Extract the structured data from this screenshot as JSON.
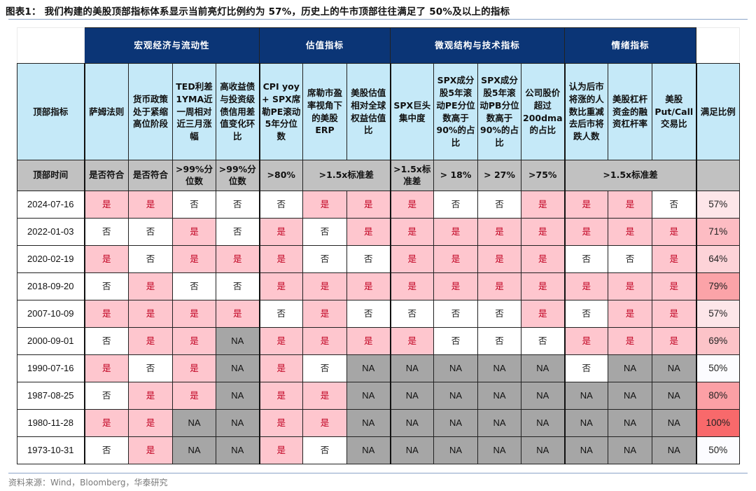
{
  "title": "图表1：  我们构建的美股顶部指标体系显示当前亮灯比例约为 57%，历史上的牛市顶部往往满足了 50%及以上的指标",
  "source": "资料来源：Wind，Bloomberg，华泰研究",
  "colors": {
    "group_header_bg": "#0b3576",
    "indicator_header_bg": "#c5e9f8",
    "criteria_bg": "#c1c1c1",
    "yes_bg": "#fec6ce",
    "yes_text": "#c00020",
    "na_bg": "#a6a6a6",
    "no_bg": "#ffffff"
  },
  "table": {
    "groups": [
      {
        "label": "宏观经济与流动性",
        "span": 4
      },
      {
        "label": "估值指标",
        "span": 3
      },
      {
        "label": "微观结构与技术指标",
        "span": 4
      },
      {
        "label": "情绪指标",
        "span": 3
      }
    ],
    "row_header_label": "顶部指标",
    "indicators": [
      "萨姆法则",
      "货币政策处于紧缩高位阶段",
      "TED利差1YMA近一周相对近三月涨幅",
      "高收益债与投资级债信用差值变化环比",
      "CPI yoy + SPX席勒PE滚动5年分位数",
      "席勒市盈率视角下的美股ERP",
      "美股估值相对全球权益估值比",
      "SPX巨头集中度",
      "SPX成分股5年滚动PE分位数高于90%的占比",
      "SPX成分股5年滚动PB分位数高于90%的占比",
      "公司股价超过200dma的占比",
      "认为后市将涨的人数比重减去后市将跌人数",
      "美股杠杆资金的融资杠杆率",
      "美股Put/Call交易比"
    ],
    "ratio_header": "满足比例",
    "criteria_label": "顶部时间",
    "criteria": [
      {
        "text": "是否符合",
        "span": 1
      },
      {
        "text": "是否符合",
        "span": 1
      },
      {
        "text": ">99%分位数",
        "span": 1
      },
      {
        "text": ">99%分位数",
        "span": 1
      },
      {
        "text": ">80%",
        "span": 1
      },
      {
        "text": ">1.5x标准差",
        "span": 2
      },
      {
        "text": ">1.5x标准差",
        "span": 1
      },
      {
        "text": "> 18%",
        "span": 1
      },
      {
        "text": "> 27%",
        "span": 1
      },
      {
        "text": ">75%",
        "span": 1
      },
      {
        "text": ">1.5x标准差",
        "span": 3
      }
    ],
    "rows": [
      {
        "date": "2024-07-16",
        "cells": [
          "是",
          "是",
          "否",
          "否",
          "否",
          "是",
          "是",
          "是",
          "否",
          "否",
          "是",
          "是",
          "是",
          "否"
        ],
        "ratio": "57%",
        "ratio_color": "#fde6e9"
      },
      {
        "date": "2022-01-03",
        "cells": [
          "否",
          "否",
          "是",
          "否",
          "是",
          "否",
          "是",
          "是",
          "是",
          "是",
          "是",
          "是",
          "是",
          "是"
        ],
        "ratio": "71%",
        "ratio_color": "#fdbcc3"
      },
      {
        "date": "2020-02-19",
        "cells": [
          "是",
          "否",
          "是",
          "是",
          "是",
          "否",
          "否",
          "是",
          "是",
          "是",
          "是",
          "否",
          "否",
          "是"
        ],
        "ratio": "64%",
        "ratio_color": "#fdd3d8"
      },
      {
        "date": "2018-09-20",
        "cells": [
          "否",
          "是",
          "否",
          "否",
          "是",
          "是",
          "是",
          "是",
          "是",
          "是",
          "是",
          "是",
          "是",
          "是"
        ],
        "ratio": "79%",
        "ratio_color": "#fba3a8"
      },
      {
        "date": "2007-10-09",
        "cells": [
          "是",
          "是",
          "是",
          "是",
          "否",
          "是",
          "否",
          "否",
          "否",
          "否",
          "是",
          "否",
          "是",
          "是"
        ],
        "ratio": "57%",
        "ratio_color": "#fde6e9"
      },
      {
        "date": "2000-09-01",
        "cells": [
          "否",
          "是",
          "是",
          "NA",
          "是",
          "是",
          "是",
          "是",
          "否",
          "否",
          "否",
          "是",
          "是",
          "是"
        ],
        "ratio": "69%",
        "ratio_color": "#fcc3c8"
      },
      {
        "date": "1990-07-16",
        "cells": [
          "是",
          "否",
          "是",
          "NA",
          "是",
          "否",
          "NA",
          "NA",
          "NA",
          "NA",
          "NA",
          "否",
          "NA",
          "NA"
        ],
        "ratio": "50%",
        "ratio_color": "#fcfcff"
      },
      {
        "date": "1987-08-25",
        "cells": [
          "否",
          "是",
          "是",
          "NA",
          "是",
          "是",
          "NA",
          "NA",
          "NA",
          "NA",
          "NA",
          "NA",
          "NA",
          "NA"
        ],
        "ratio": "80%",
        "ratio_color": "#fba0a5"
      },
      {
        "date": "1980-11-28",
        "cells": [
          "是",
          "是",
          "NA",
          "NA",
          "是",
          "是",
          "NA",
          "NA",
          "NA",
          "NA",
          "NA",
          "NA",
          "NA",
          "NA"
        ],
        "ratio": "100%",
        "ratio_color": "#f8696b"
      },
      {
        "date": "1973-10-31",
        "cells": [
          "否",
          "是",
          "NA",
          "NA",
          "是",
          "否",
          "NA",
          "NA",
          "NA",
          "NA",
          "NA",
          "NA",
          "NA",
          "NA"
        ],
        "ratio": "50%",
        "ratio_color": "#fcfcff"
      }
    ]
  }
}
